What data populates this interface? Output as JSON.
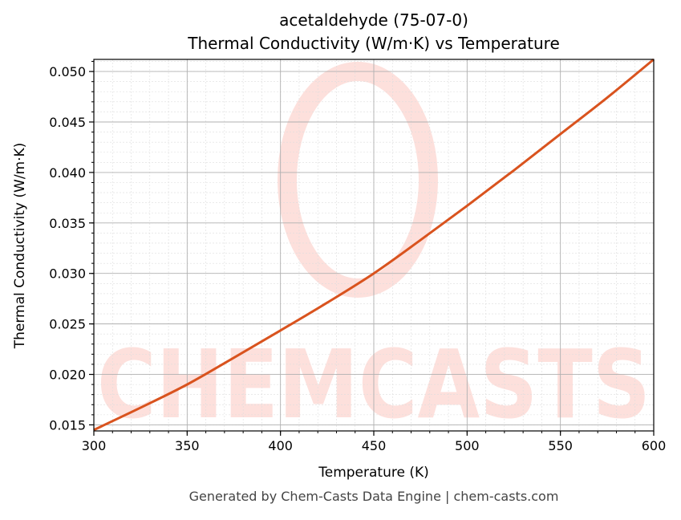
{
  "chart_data": {
    "type": "line",
    "title": "acetaldehyde (75-07-0)",
    "subtitle": "Thermal Conductivity (W/m·K) vs Temperature",
    "xlabel": "Temperature (K)",
    "ylabel": "Thermal Conductivity (W/m·K)",
    "xlim": [
      300,
      600
    ],
    "ylim": [
      0.0144,
      0.0512
    ],
    "xticks": [
      300,
      350,
      400,
      450,
      500,
      550,
      600
    ],
    "xtick_labels": [
      "300",
      "350",
      "400",
      "450",
      "500",
      "550",
      "600"
    ],
    "yticks": [
      0.015,
      0.02,
      0.025,
      0.03,
      0.035,
      0.04,
      0.045,
      0.05
    ],
    "ytick_labels": [
      "0.015",
      "0.020",
      "0.025",
      "0.030",
      "0.035",
      "0.040",
      "0.045",
      "0.050"
    ],
    "grid": true,
    "minor_grid": true,
    "line_color": "#d9531e",
    "series": [
      {
        "x": [
          300,
          325,
          350,
          375,
          400,
          425,
          450,
          475,
          500,
          525,
          550,
          575,
          600
        ],
        "y": [
          0.0145,
          0.0167,
          0.019,
          0.02165,
          0.02435,
          0.0271,
          0.03,
          0.0333,
          0.0367,
          0.0402,
          0.0438,
          0.0474,
          0.0512
        ]
      }
    ]
  },
  "watermark": {
    "text": "CHEMCASTS",
    "color": "#fde0dc"
  },
  "footer": "Generated by Chem-Casts Data Engine | chem-casts.com"
}
